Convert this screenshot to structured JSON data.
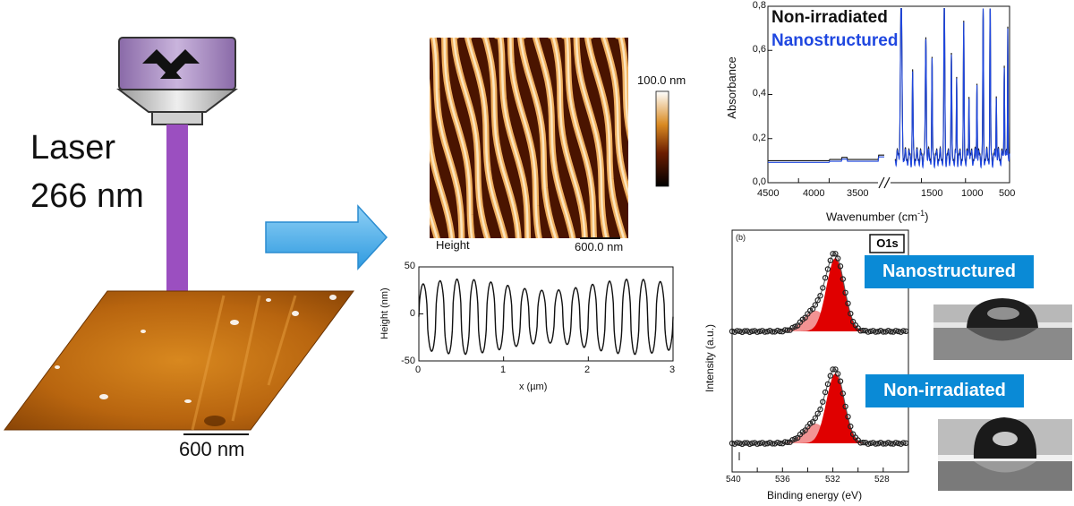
{
  "laser": {
    "line1": "Laser",
    "line2": "266 nm"
  },
  "sample_scale": "600 nm",
  "afm": {
    "colorbar_max": "100.0 nm",
    "channel": "Height",
    "scalebar": "600.0 nm"
  },
  "colors": {
    "laser_beam": "#9b4fc0",
    "arrow": "#3aa9e8",
    "badge": "#0a8ad6",
    "nano_line": "#1f47e0",
    "xps_peak": "#e00000",
    "xps_peak_light": "#f08080"
  },
  "chart_data": [
    {
      "type": "line",
      "name": "height-profile",
      "xlabel": "x (µm)",
      "ylabel": "Height (nm)",
      "xlim": [
        0,
        3
      ],
      "ylim": [
        -50,
        50
      ],
      "xticks": [
        "0",
        "1",
        "2",
        "3"
      ],
      "yticks": [
        "50",
        "0",
        "-50"
      ],
      "period_um": 0.2,
      "amplitude_nm": 40
    },
    {
      "type": "line",
      "name": "ftir",
      "xlabel": "Wavenumber (cm",
      "xlabel_sup": "-1",
      "xlabel_end": ")",
      "ylabel": "Absorbance",
      "ylim": [
        0,
        0.8
      ],
      "xticks": [
        "4500",
        "4000",
        "3500",
        "1500",
        "1000",
        "500"
      ],
      "yticks": [
        "0,0",
        "0,2",
        "0,4",
        "0,6",
        "0,8"
      ],
      "series": [
        {
          "name": "Non-irradiated",
          "color": "#111111"
        },
        {
          "name": "Nanostructured",
          "color": "#1f47e0"
        }
      ]
    },
    {
      "type": "line",
      "name": "xps-o1s",
      "panel_label": "(b)",
      "peak_label": "O1s",
      "xlabel": "Binding energy (eV)",
      "ylabel": "Intensity (a.u.)",
      "xlim": [
        540,
        526
      ],
      "xticks": [
        "540",
        "536",
        "532",
        "528"
      ],
      "series": [
        {
          "name": "Nanostructured",
          "main_peak_ev": 531.8,
          "shoulder_ev": 533.4
        },
        {
          "name": "Non-irradiated",
          "main_peak_ev": 531.8,
          "shoulder_ev": 533.4
        }
      ]
    }
  ]
}
